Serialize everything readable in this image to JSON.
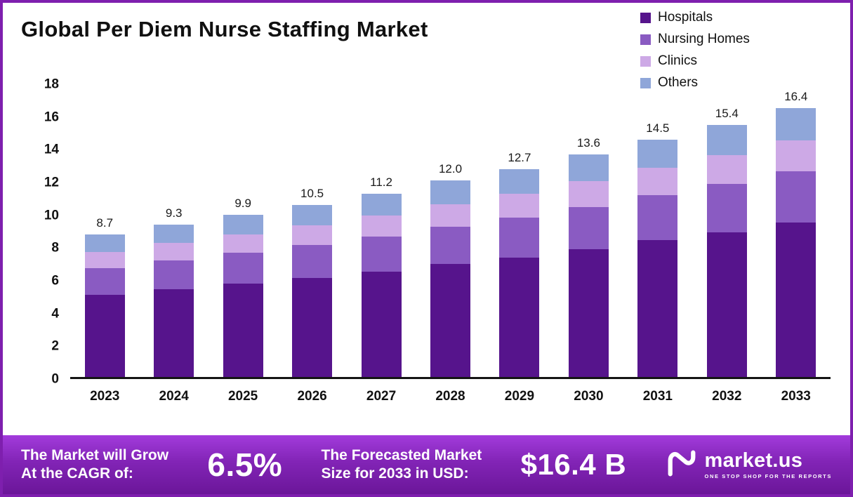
{
  "title": "Global Per Diem Nurse Staffing Market",
  "chart_data": {
    "type": "bar",
    "stacked": true,
    "title": "Global Per Diem Nurse Staffing Market",
    "categories": [
      "2023",
      "2024",
      "2025",
      "2026",
      "2027",
      "2028",
      "2029",
      "2030",
      "2031",
      "2032",
      "2033"
    ],
    "series": [
      {
        "name": "Hospitals",
        "color": "#56148c",
        "values": [
          5.0,
          5.35,
          5.7,
          6.05,
          6.45,
          6.9,
          7.3,
          7.8,
          8.35,
          8.85,
          9.45
        ]
      },
      {
        "name": "Nursing Homes",
        "color": "#8a5bc2",
        "values": [
          1.65,
          1.77,
          1.88,
          2.0,
          2.13,
          2.28,
          2.41,
          2.58,
          2.76,
          2.93,
          3.1
        ]
      },
      {
        "name": "Clinics",
        "color": "#cda9e6",
        "values": [
          1.0,
          1.07,
          1.14,
          1.2,
          1.29,
          1.38,
          1.46,
          1.56,
          1.67,
          1.77,
          1.9
        ]
      },
      {
        "name": "Others",
        "color": "#8fa6d9",
        "values": [
          1.05,
          1.11,
          1.18,
          1.25,
          1.33,
          1.44,
          1.53,
          1.66,
          1.72,
          1.85,
          1.95
        ]
      }
    ],
    "totals": [
      8.7,
      9.3,
      9.9,
      10.5,
      11.2,
      12.0,
      12.7,
      13.6,
      14.5,
      15.4,
      16.4
    ],
    "xlabel": "",
    "ylabel": "",
    "ylim": [
      0,
      18
    ],
    "yticks": [
      0,
      2,
      4,
      6,
      8,
      10,
      12,
      14,
      16,
      18
    ],
    "grid": false,
    "legend_position": "top-right"
  },
  "banner": {
    "cagr_label_line1": "The Market will Grow",
    "cagr_label_line2": "At the CAGR of:",
    "cagr_value": "6.5%",
    "forecast_label_line1": "The Forecasted Market",
    "forecast_label_line2": "Size for 2033 in USD:",
    "forecast_value": "$16.4 B",
    "brand_name": "market.us",
    "brand_tagline": "ONE STOP SHOP FOR THE REPORTS"
  },
  "colors": {
    "frame_border": "#7e1fae",
    "banner_top": "#a23bdc",
    "banner_bottom": "#6b1699",
    "axis": "#151515",
    "text": "#111111"
  }
}
